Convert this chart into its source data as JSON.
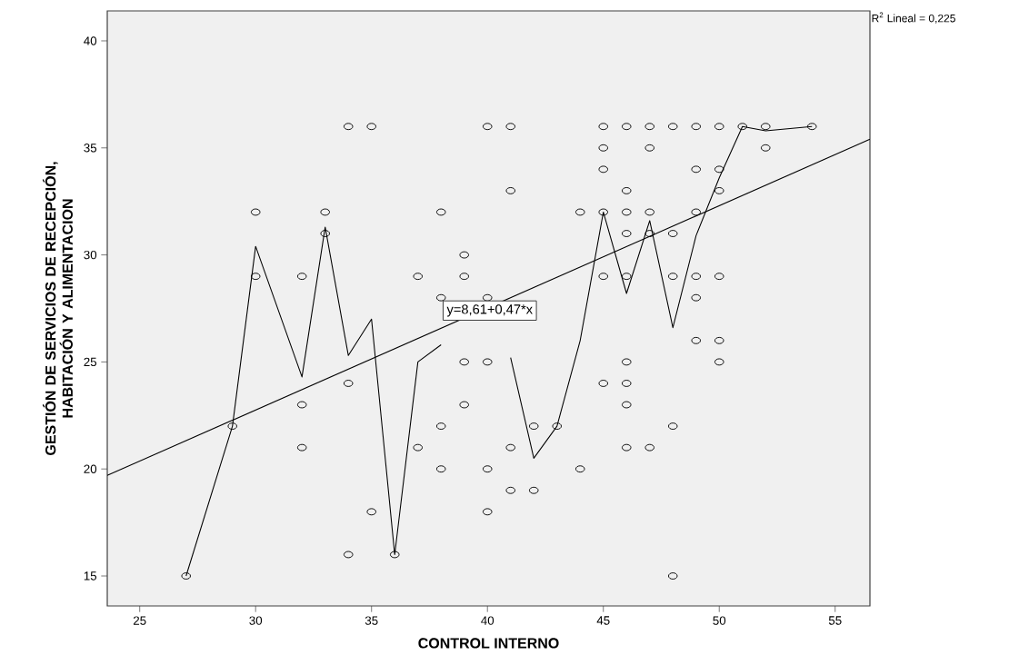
{
  "chart_data": {
    "type": "scatter",
    "xlabel": "CONTROL INTERNO",
    "ylabel": "GESTIÓN DE SERVICIOS DE RECEPCIÓN, HABITACIÓN Y ALIMENTACION",
    "xlim": [
      23.6,
      56.5
    ],
    "ylim": [
      13.6,
      41.4
    ],
    "xticks": [
      25,
      30,
      35,
      40,
      45,
      50,
      55
    ],
    "yticks": [
      15,
      20,
      25,
      30,
      35,
      40
    ],
    "grid": false,
    "series": [
      {
        "color": "#000000",
        "marker": "circle",
        "x": [
          27,
          29,
          30,
          30,
          32,
          32,
          32,
          33,
          33,
          34,
          34,
          34,
          35,
          35,
          36,
          37,
          37,
          38,
          38,
          38,
          38,
          39,
          39,
          39,
          39,
          40,
          40,
          40,
          40,
          40,
          41,
          41,
          41,
          41,
          42,
          42,
          43,
          44,
          44,
          45,
          45,
          45,
          45,
          45,
          45,
          46,
          46,
          46,
          46,
          46,
          46,
          46,
          46,
          46,
          47,
          47,
          47,
          47,
          47,
          48,
          48,
          48,
          48,
          48,
          49,
          49,
          49,
          49,
          49,
          49,
          50,
          50,
          50,
          50,
          50,
          50,
          51,
          52,
          52,
          54
        ],
        "values": [
          15,
          22,
          32,
          29,
          29,
          23,
          21,
          32,
          31,
          36,
          24,
          16,
          36,
          18,
          16,
          29,
          21,
          32,
          28,
          22,
          20,
          30,
          29,
          25,
          23,
          36,
          28,
          25,
          20,
          18,
          36,
          33,
          21,
          19,
          22,
          19,
          22,
          32,
          20,
          36,
          35,
          34,
          32,
          29,
          24,
          36,
          33,
          32,
          31,
          29,
          25,
          24,
          23,
          21,
          36,
          35,
          32,
          31,
          21,
          36,
          31,
          29,
          22,
          15,
          36,
          34,
          32,
          29,
          28,
          26,
          36,
          34,
          33,
          29,
          26,
          25,
          36,
          36,
          35,
          36
        ]
      },
      {
        "type": "line",
        "color": "#000000",
        "marker": "none",
        "x": [
          27,
          29,
          30,
          32,
          33,
          34,
          35,
          36,
          37,
          38,
          39,
          40,
          41,
          42,
          43,
          44,
          45,
          46,
          47,
          48,
          49,
          50,
          51,
          52,
          54
        ],
        "values": [
          15,
          22,
          30.4,
          24.3,
          31.3,
          25.3,
          27,
          16,
          25,
          25.8,
          null,
          null,
          25.2,
          20.5,
          22,
          26,
          32,
          28.2,
          31.6,
          26.6,
          30.9,
          33.6,
          36,
          35.8,
          36
        ]
      },
      {
        "type": "line",
        "color": "#000000",
        "marker": "none",
        "x": [
          23.6,
          56.5
        ],
        "values": [
          19.7,
          35.4
        ]
      }
    ],
    "annotations": [
      {
        "text": "y=8,61+0,47*x",
        "x": 40.1,
        "y": 27.4
      },
      "R$^{2}$ Lineal = 0,225"
    ]
  }
}
